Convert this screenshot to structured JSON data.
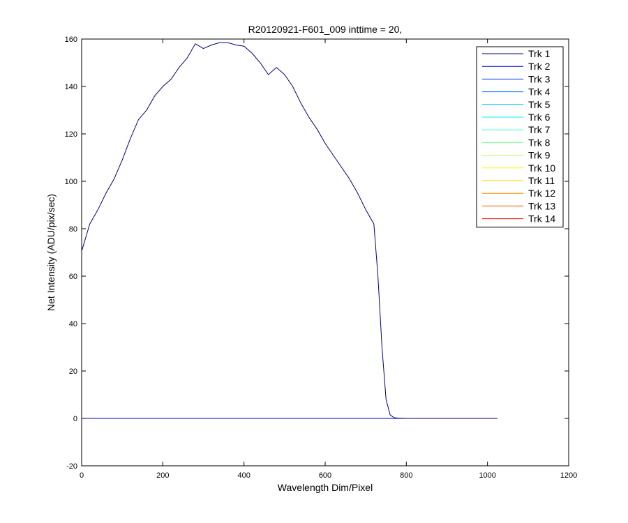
{
  "chart_data": {
    "type": "line",
    "title": "R20120921-F601_009 inttime = 20,",
    "xlabel": "Wavelength Dim/Pixel",
    "ylabel": "Net Intensity (ADU/pix/sec)",
    "xlim": [
      0,
      1200
    ],
    "ylim": [
      -20,
      160
    ],
    "xticks": [
      0,
      200,
      400,
      600,
      800,
      1000,
      1200
    ],
    "yticks": [
      -20,
      0,
      20,
      40,
      60,
      80,
      100,
      120,
      140,
      160
    ],
    "grid": false,
    "legend": {
      "position": "top-right"
    },
    "series": [
      {
        "name": "Trk 1",
        "color": "#00007f",
        "x": [
          0,
          20,
          40,
          60,
          80,
          100,
          120,
          140,
          160,
          180,
          200,
          220,
          240,
          260,
          280,
          300,
          320,
          340,
          360,
          380,
          400,
          420,
          440,
          460,
          480,
          500,
          520,
          540,
          560,
          580,
          600,
          620,
          640,
          660,
          680,
          700,
          720,
          730,
          740,
          750,
          760,
          770,
          780,
          800,
          850,
          900,
          950,
          1000,
          1024
        ],
        "y": [
          70.5,
          82,
          88,
          95,
          101,
          109,
          118,
          126,
          130,
          136,
          140,
          143,
          148,
          152,
          158,
          156,
          157.5,
          158.5,
          158.5,
          157.5,
          157,
          154,
          150,
          145,
          148,
          145,
          140,
          133,
          127,
          122,
          116,
          111,
          106,
          101,
          95,
          88,
          82,
          60,
          30,
          8,
          1.5,
          0.3,
          0.1,
          0,
          0,
          0,
          0,
          0,
          0
        ]
      },
      {
        "name": "Trk 2",
        "color": "#0000bf",
        "x": [
          0,
          1024
        ],
        "y": [
          0,
          0
        ]
      },
      {
        "name": "Trk 3",
        "color": "#0030ff",
        "x": [
          0,
          1024
        ],
        "y": [
          0,
          0
        ]
      },
      {
        "name": "Trk 4",
        "color": "#0070ff",
        "x": [
          0,
          1024
        ],
        "y": [
          0,
          0
        ]
      },
      {
        "name": "Trk 5",
        "color": "#00b0ff",
        "x": [
          0,
          1024
        ],
        "y": [
          0,
          0
        ]
      },
      {
        "name": "Trk 6",
        "color": "#00efff",
        "x": [
          0,
          1024
        ],
        "y": [
          0,
          0
        ]
      },
      {
        "name": "Trk 7",
        "color": "#30ffcf",
        "x": [
          0,
          1024
        ],
        "y": [
          0,
          0
        ]
      },
      {
        "name": "Trk 8",
        "color": "#70ff8f",
        "x": [
          0,
          1024
        ],
        "y": [
          0,
          0
        ]
      },
      {
        "name": "Trk 9",
        "color": "#b0ff4f",
        "x": [
          0,
          1024
        ],
        "y": [
          0,
          0
        ]
      },
      {
        "name": "Trk 10",
        "color": "#efff10",
        "x": [
          0,
          1024
        ],
        "y": [
          0,
          0
        ]
      },
      {
        "name": "Trk 11",
        "color": "#ffcf00",
        "x": [
          0,
          1024
        ],
        "y": [
          0,
          0
        ]
      },
      {
        "name": "Trk 12",
        "color": "#ff8f00",
        "x": [
          0,
          1024
        ],
        "y": [
          0,
          0
        ]
      },
      {
        "name": "Trk 13",
        "color": "#ff5000",
        "x": [
          0,
          1024
        ],
        "y": [
          0,
          0
        ]
      },
      {
        "name": "Trk 14",
        "color": "#ef1000",
        "x": [
          0,
          1024
        ],
        "y": [
          0,
          0
        ]
      }
    ]
  }
}
